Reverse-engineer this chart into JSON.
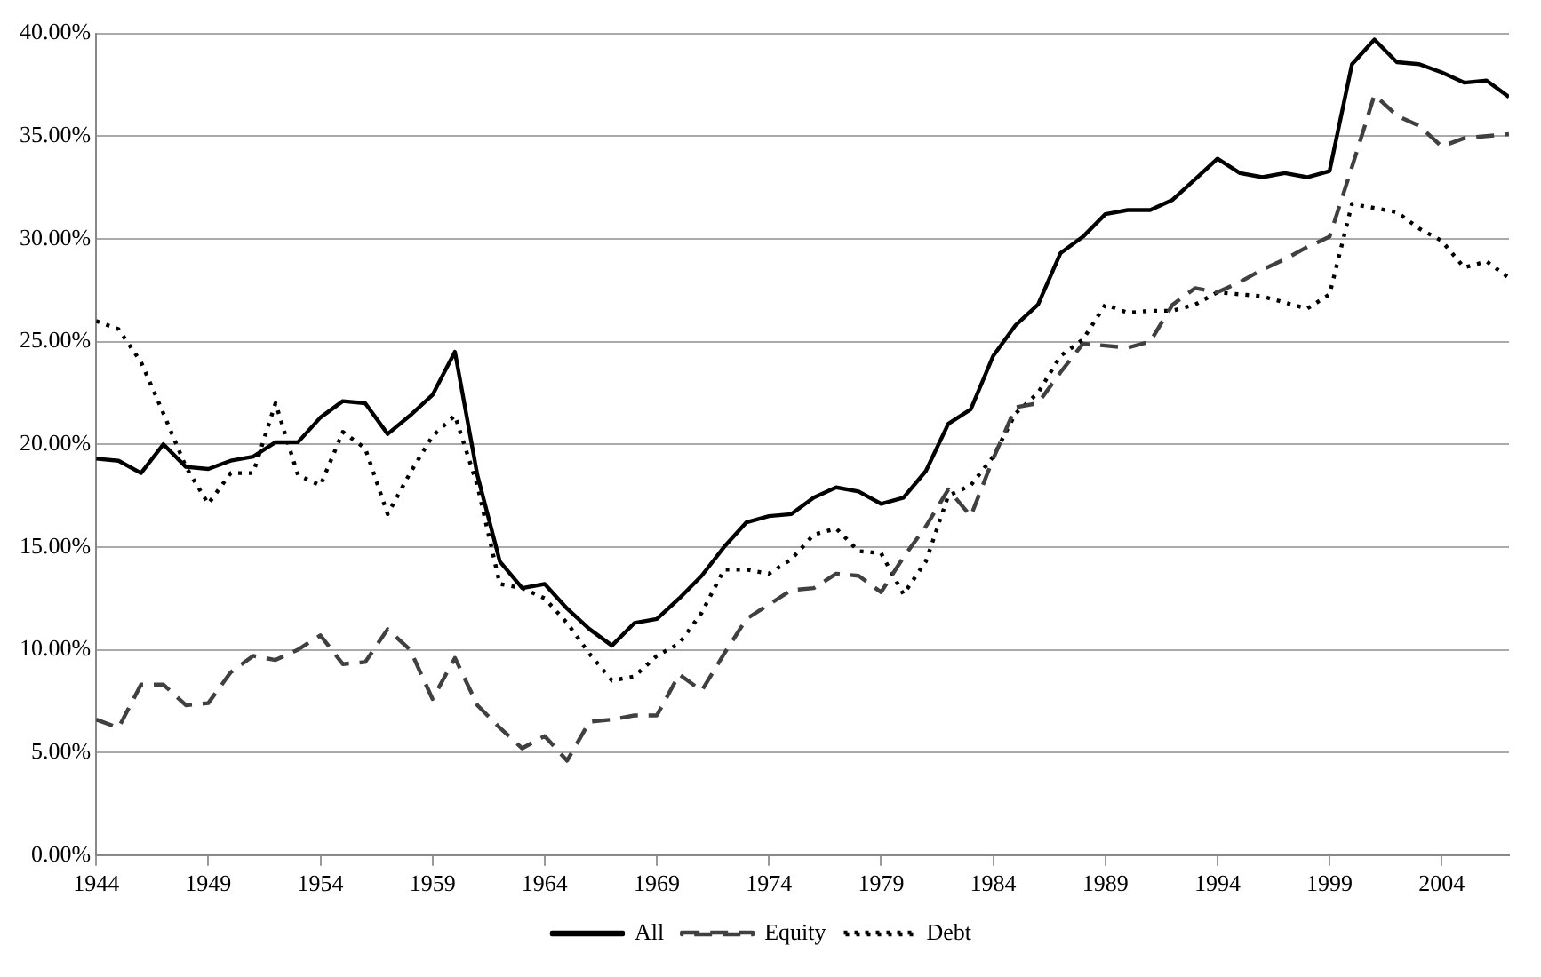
{
  "chart_data": {
    "type": "line",
    "x": [
      1944,
      1945,
      1946,
      1947,
      1948,
      1949,
      1950,
      1951,
      1952,
      1953,
      1954,
      1955,
      1956,
      1957,
      1958,
      1959,
      1960,
      1961,
      1962,
      1963,
      1964,
      1965,
      1966,
      1967,
      1968,
      1969,
      1970,
      1971,
      1972,
      1973,
      1974,
      1975,
      1976,
      1977,
      1978,
      1979,
      1980,
      1981,
      1982,
      1983,
      1984,
      1985,
      1986,
      1987,
      1988,
      1989,
      1990,
      1991,
      1992,
      1993,
      1994,
      1995,
      1996,
      1997,
      1998,
      1999,
      2000,
      2001,
      2002,
      2003,
      2004,
      2005,
      2006,
      2007
    ],
    "series": [
      {
        "name": "All",
        "color": "#000000",
        "line_style": "solid",
        "values": [
          19.3,
          19.2,
          18.6,
          20.0,
          18.9,
          18.8,
          19.2,
          19.4,
          20.1,
          20.1,
          21.3,
          22.1,
          22.0,
          20.5,
          21.4,
          22.4,
          24.5,
          18.5,
          14.3,
          13.0,
          13.2,
          12.0,
          11.0,
          10.2,
          11.3,
          11.5,
          12.5,
          13.6,
          15.0,
          16.2,
          16.5,
          16.6,
          17.4,
          17.9,
          17.7,
          17.1,
          17.4,
          18.7,
          21.0,
          21.7,
          24.3,
          25.8,
          26.8,
          29.3,
          30.1,
          31.2,
          31.4,
          31.4,
          31.9,
          32.9,
          33.9,
          33.2,
          33.0,
          33.2,
          33.0,
          33.3,
          38.5,
          39.7,
          38.6,
          38.5,
          38.1,
          37.6,
          37.7,
          36.9
        ]
      },
      {
        "name": "Equity",
        "color": "#404040",
        "line_style": "dashed",
        "values": [
          6.6,
          6.2,
          8.3,
          8.3,
          7.3,
          7.4,
          8.9,
          9.7,
          9.5,
          10.0,
          10.7,
          9.3,
          9.4,
          11.0,
          10.0,
          7.6,
          9.6,
          7.3,
          6.2,
          5.2,
          5.8,
          4.6,
          6.5,
          6.6,
          6.8,
          6.8,
          8.8,
          8.0,
          9.8,
          11.5,
          12.2,
          12.9,
          13.0,
          13.7,
          13.6,
          12.8,
          14.5,
          16.0,
          17.8,
          16.5,
          19.3,
          21.8,
          22.0,
          23.5,
          24.9,
          24.8,
          24.7,
          25.0,
          26.8,
          27.6,
          27.4,
          27.9,
          28.5,
          29.0,
          29.6,
          30.1,
          33.5,
          37.0,
          36.0,
          35.5,
          34.5,
          34.9,
          35.0,
          35.1
        ]
      },
      {
        "name": "Debt",
        "color": "#000000",
        "line_style": "dotted",
        "values": [
          26.0,
          25.6,
          24.0,
          21.5,
          18.9,
          17.1,
          18.6,
          18.6,
          22.0,
          18.5,
          18.0,
          20.6,
          19.8,
          16.6,
          18.6,
          20.4,
          21.4,
          18.0,
          13.2,
          13.0,
          12.5,
          11.3,
          9.8,
          8.5,
          8.7,
          9.7,
          10.3,
          11.8,
          13.9,
          13.9,
          13.7,
          14.4,
          15.6,
          15.9,
          14.8,
          14.7,
          12.7,
          14.3,
          17.5,
          18.0,
          19.4,
          21.5,
          22.5,
          24.3,
          25.1,
          26.8,
          26.4,
          26.5,
          26.5,
          26.8,
          27.4,
          27.3,
          27.2,
          26.9,
          26.6,
          27.3,
          31.7,
          31.5,
          31.3,
          30.5,
          29.9,
          28.6,
          28.9,
          28.1
        ]
      }
    ],
    "xlim": [
      1944,
      2007
    ],
    "xticks": [
      1944,
      1949,
      1954,
      1959,
      1964,
      1969,
      1974,
      1979,
      1984,
      1989,
      1994,
      1999,
      2004
    ],
    "ylim": [
      0,
      40
    ],
    "yticks": [
      {
        "value": 0,
        "label": "0.00%"
      },
      {
        "value": 5,
        "label": "5.00%"
      },
      {
        "value": 10,
        "label": "10.00%"
      },
      {
        "value": 15,
        "label": "15.00%"
      },
      {
        "value": 20,
        "label": "20.00%"
      },
      {
        "value": 25,
        "label": "25.00%"
      },
      {
        "value": 30,
        "label": "30.00%"
      },
      {
        "value": 35,
        "label": "35.00%"
      },
      {
        "value": 40,
        "label": "40.00%"
      }
    ],
    "grid": "y",
    "legend": "bottom",
    "marker": "none"
  }
}
